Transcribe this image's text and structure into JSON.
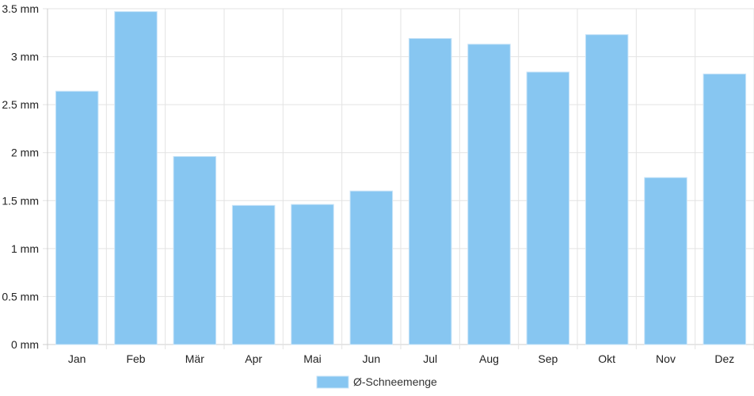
{
  "chart_data": {
    "type": "bar",
    "categories": [
      "Jan",
      "Feb",
      "Mär",
      "Apr",
      "Mai",
      "Jun",
      "Jul",
      "Aug",
      "Sep",
      "Okt",
      "Nov",
      "Dez"
    ],
    "series": [
      {
        "name": "Ø-Schneemenge",
        "values": [
          2.64,
          3.47,
          1.96,
          1.45,
          1.46,
          1.6,
          3.19,
          3.13,
          2.84,
          3.23,
          1.74,
          2.82
        ]
      }
    ],
    "title": "",
    "xlabel": "",
    "ylabel": "",
    "ylim": [
      0,
      3.5
    ],
    "yticks": [
      "0 mm",
      "0.5 mm",
      "1 mm",
      "1.5 mm",
      "2 mm",
      "2.5 mm",
      "3 mm",
      "3.5 mm"
    ],
    "grid": true,
    "legend_position": "bottom",
    "colors": {
      "bar": "#87c6f1",
      "bar_border": "#c9e4f8",
      "grid": "#e3e3e3",
      "axis": "#cccccc"
    }
  }
}
